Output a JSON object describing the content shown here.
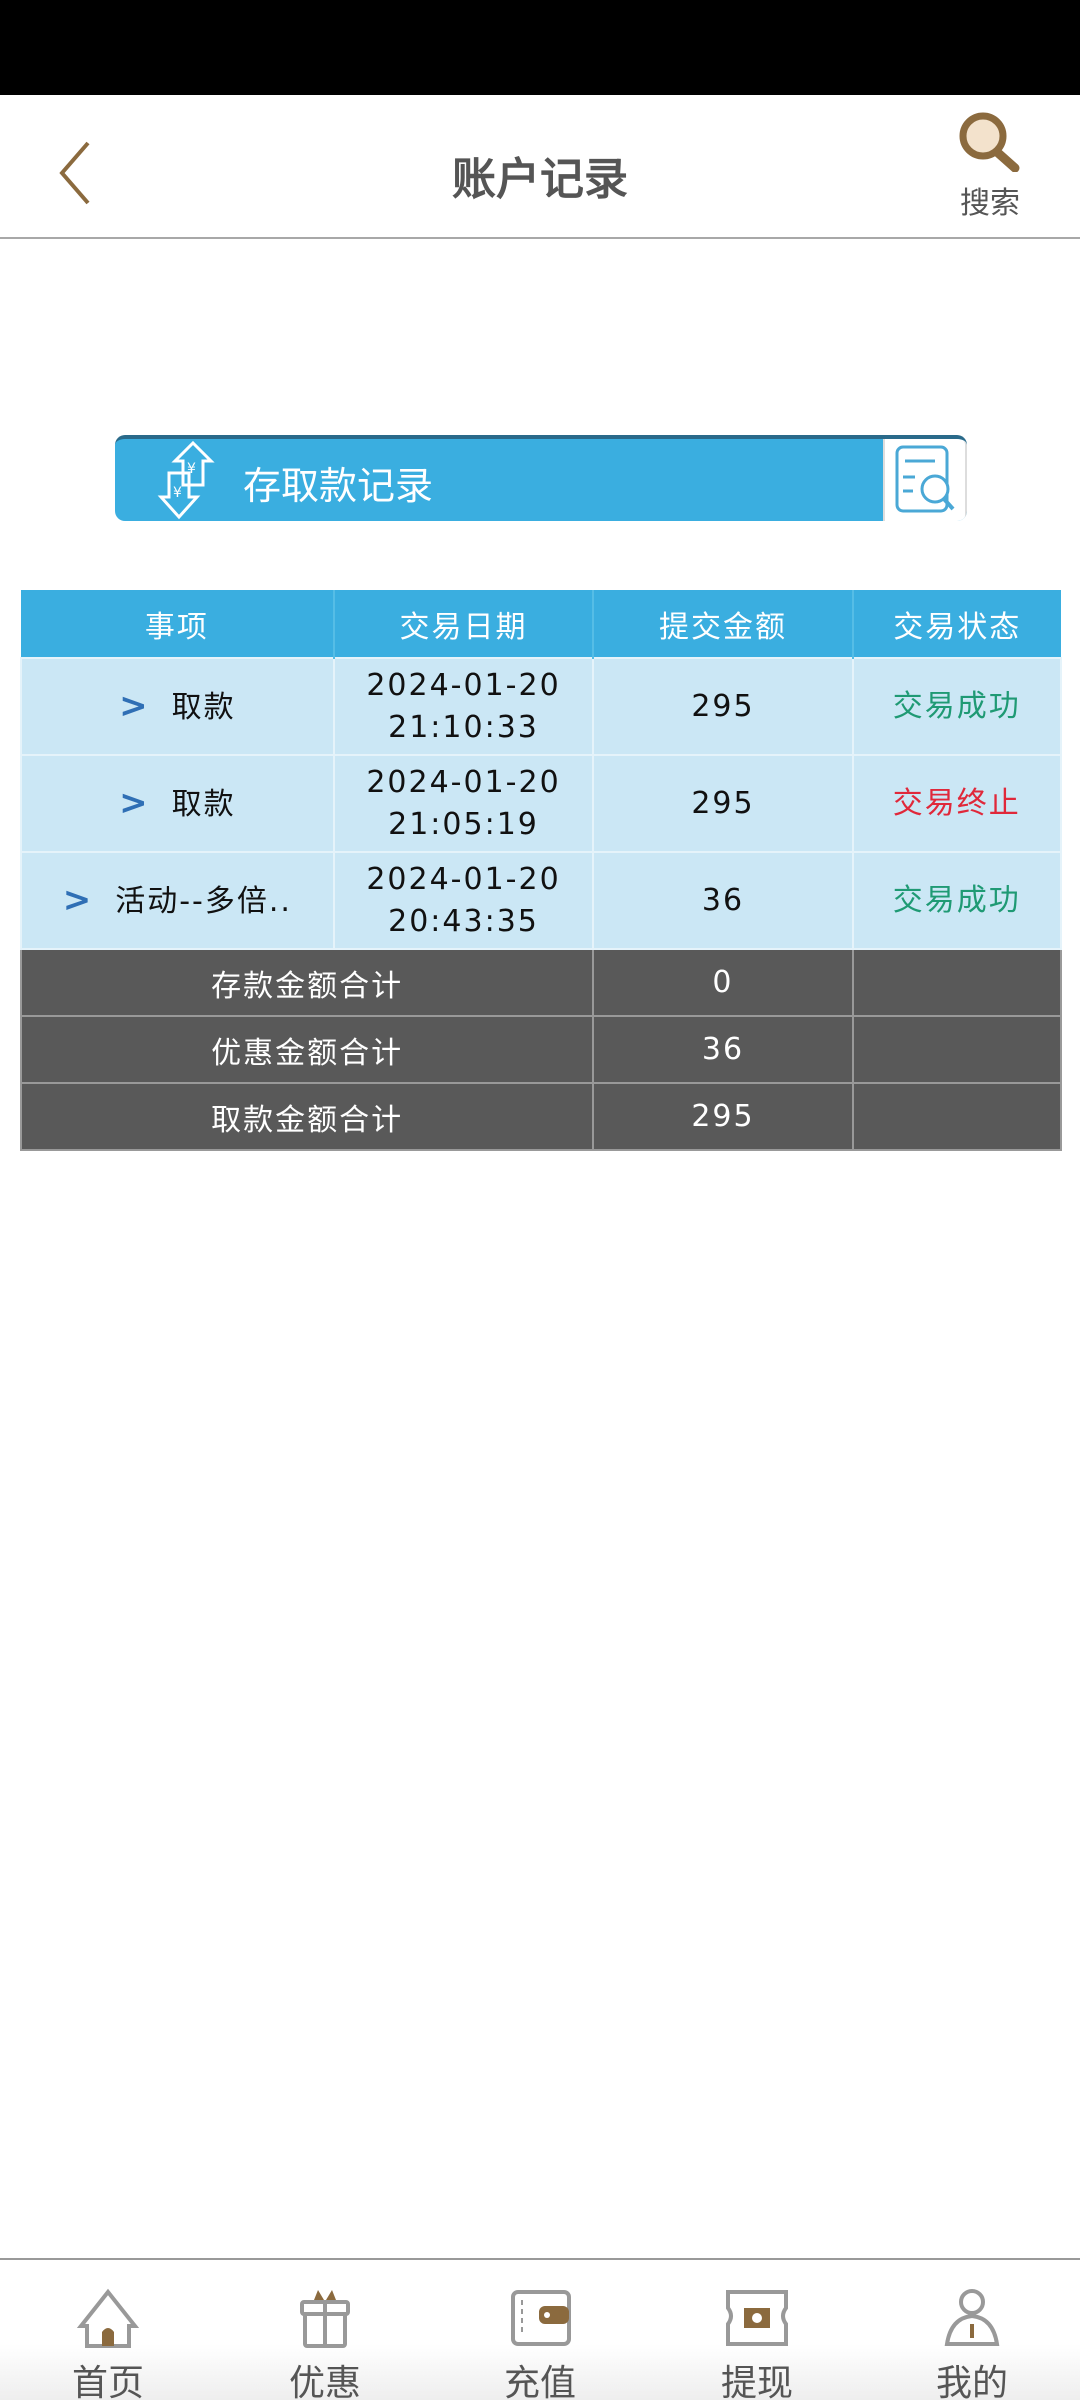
{
  "header": {
    "title": "账户记录",
    "search_label": "搜索",
    "back_icon": "chevron-left-icon",
    "search_icon": "magnifier-icon"
  },
  "banner": {
    "label": "存取款记录"
  },
  "colors": {
    "accent": "#3aaee0",
    "brown": "#8b6a3e",
    "success": "#1f9a74",
    "fail": "#e0283a",
    "total_bg": "#595959"
  },
  "table": {
    "headers": [
      "事项",
      "交易日期",
      "提交金额",
      "交易状态"
    ],
    "rows": [
      {
        "item": "取款",
        "date": "2024-01-20",
        "time": "21:10:33",
        "amount": "295",
        "status": "交易成功"
      },
      {
        "item": "取款",
        "date": "2024-01-20",
        "time": "21:05:19",
        "amount": "295",
        "status": "交易终止"
      },
      {
        "item": "活动--多倍..",
        "date": "2024-01-20",
        "time": "20:43:35",
        "amount": "36",
        "status": "交易成功"
      }
    ],
    "totals": [
      {
        "label": "存款金额合计",
        "value": "0"
      },
      {
        "label": "优惠金额合计",
        "value": "36"
      },
      {
        "label": "取款金额合计",
        "value": "295"
      }
    ]
  },
  "nav": {
    "items": [
      {
        "label": "首页"
      },
      {
        "label": "优惠"
      },
      {
        "label": "充值"
      },
      {
        "label": "提现"
      },
      {
        "label": "我的"
      }
    ]
  }
}
